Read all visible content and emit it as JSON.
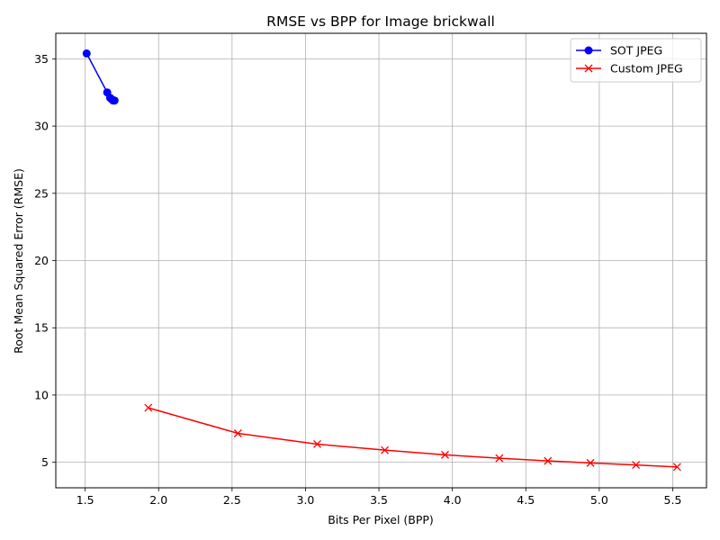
{
  "chart_data": {
    "type": "line",
    "title": "RMSE vs BPP for Image brickwall",
    "xlabel": "Bits Per Pixel (BPP)",
    "ylabel": "Root Mean Squared Error (RMSE)",
    "xlim": [
      1.3,
      5.73
    ],
    "ylim": [
      3.1,
      36.9
    ],
    "xticks": [
      "1.5",
      "2.0",
      "2.5",
      "3.0",
      "3.5",
      "4.0",
      "4.5",
      "5.0",
      "5.5"
    ],
    "yticks": [
      "5",
      "10",
      "15",
      "20",
      "25",
      "30",
      "35"
    ],
    "grid": true,
    "legend_position": "top-right",
    "series": [
      {
        "name": "SOT JPEG",
        "color": "#0000ff",
        "marker": "circle",
        "x": [
          1.51,
          1.65,
          1.67,
          1.68,
          1.69,
          1.7
        ],
        "y": [
          35.4,
          32.5,
          32.1,
          32.0,
          31.9,
          31.9
        ]
      },
      {
        "name": "Custom JPEG",
        "color": "#ff0000",
        "marker": "x",
        "x": [
          1.93,
          2.54,
          3.08,
          3.54,
          3.95,
          4.32,
          4.65,
          4.94,
          5.25,
          5.53
        ],
        "y": [
          9.05,
          7.15,
          6.35,
          5.9,
          5.55,
          5.3,
          5.1,
          4.95,
          4.8,
          4.65
        ]
      }
    ]
  }
}
